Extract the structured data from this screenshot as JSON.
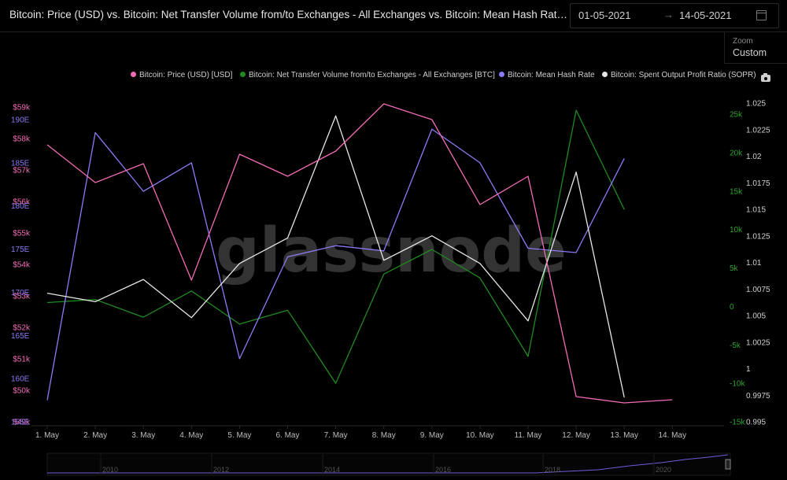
{
  "header": {
    "title": "Bitcoin: Price (USD) vs. Bitcoin: Net Transfer Volume from/to Exchanges - All Exchanges vs. Bitcoin: Mean Hash Rate vs. Bitcoin...",
    "date_start": "01-05-2021",
    "date_end": "14-05-2021",
    "zoom_label": "Zoom",
    "zoom_value": "Custom"
  },
  "watermark": "glassnode",
  "colors": {
    "price": "#f26bb5",
    "netflow": "#1f8a1f",
    "hashrate": "#8b7cf6",
    "sopr": "#e6e6e6",
    "netflow_axis": "#2ea02e"
  },
  "chart_data": {
    "type": "line",
    "categories": [
      "1. May",
      "2. May",
      "3. May",
      "4. May",
      "5. May",
      "6. May",
      "7. May",
      "8. May",
      "9. May",
      "10. May",
      "11. May",
      "12. May",
      "13. May",
      "14. May"
    ],
    "series": [
      {
        "name": "Bitcoin: Price (USD) [USD]",
        "axis": "price",
        "values": [
          57800,
          56600,
          57200,
          53500,
          57500,
          56800,
          57600,
          59100,
          58600,
          55900,
          56800,
          49800,
          49600,
          49700
        ]
      },
      {
        "name": "Bitcoin: Net Transfer Volume from/to Exchanges - All Exchanges [BTC]",
        "axis": "netflow",
        "values": [
          500,
          900,
          -1400,
          2000,
          -2300,
          -500,
          -10000,
          4200,
          7400,
          3700,
          -6500,
          25500,
          12600,
          null
        ]
      },
      {
        "name": "Bitcoin: Mean Hash Rate",
        "axis": "hashrate",
        "values": [
          157500,
          188500,
          181700,
          185000,
          162300,
          174100,
          175400,
          174800,
          188900,
          185000,
          175100,
          174600,
          185500,
          null
        ]
      },
      {
        "name": "Bitcoin: Spent Output Profit Ratio (SOPR)",
        "axis": "sopr",
        "values": [
          1.0071,
          1.0063,
          1.0084,
          1.0048,
          1.0099,
          1.0123,
          1.0238,
          1.0102,
          1.0125,
          1.0099,
          1.0045,
          1.0185,
          0.9973,
          null
        ]
      }
    ],
    "axes": {
      "price": {
        "ticks": [
          "$49k",
          "$50k",
          "$51k",
          "$52k",
          "$53k",
          "$54k",
          "$55k",
          "$56k",
          "$57k",
          "$58k",
          "$59k"
        ],
        "ylim": [
          49000,
          59000
        ],
        "side": "left"
      },
      "hashrate": {
        "ticks": [
          "155E",
          "160E",
          "165E",
          "170E",
          "175E",
          "180E",
          "185E",
          "190E"
        ],
        "ylim": [
          155000,
          190000
        ],
        "side": "left"
      },
      "netflow": {
        "ticks": [
          "-15k",
          "-10k",
          "-5k",
          "0",
          "5k",
          "10k",
          "15k",
          "20k",
          "25k"
        ],
        "ylim": [
          -15000,
          25000
        ],
        "side": "right"
      },
      "sopr": {
        "ticks": [
          "0.995",
          "0.9975",
          "1",
          "1.0025",
          "1.005",
          "1.0075",
          "1.01",
          "1.0125",
          "1.015",
          "1.0175",
          "1.02",
          "1.0225",
          "1.025"
        ],
        "ylim": [
          0.995,
          1.025
        ],
        "side": "right"
      }
    },
    "grid": false,
    "legend": "top"
  },
  "navigator": {
    "years": [
      "2010",
      "2012",
      "2014",
      "2016",
      "2018",
      "2020"
    ]
  }
}
